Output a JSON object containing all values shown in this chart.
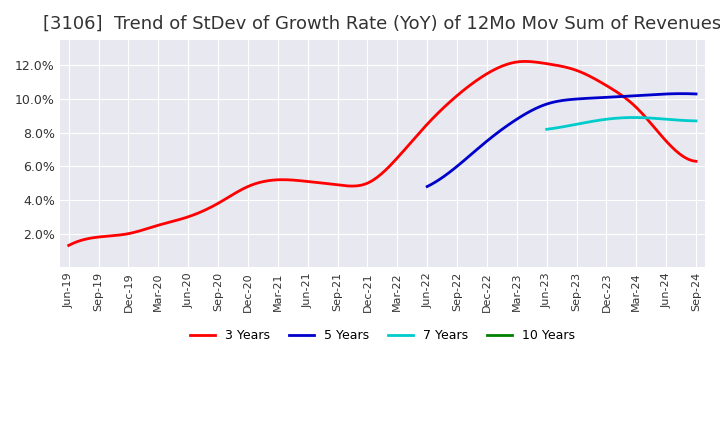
{
  "title": "[3106]  Trend of StDev of Growth Rate (YoY) of 12Mo Mov Sum of Revenues",
  "title_fontsize": 13,
  "ylabel": "",
  "ylim": [
    0.0,
    0.135
  ],
  "yticks": [
    0.02,
    0.04,
    0.06,
    0.08,
    0.1,
    0.12
  ],
  "ytick_labels": [
    "2.0%",
    "4.0%",
    "6.0%",
    "8.0%",
    "10.0%",
    "12.0%"
  ],
  "background_color": "#ffffff",
  "plot_bg_color": "#e8e8f0",
  "grid_color": "#ffffff",
  "series": {
    "3 Years": {
      "color": "#ff0000",
      "dates": [
        "Jun-19",
        "Sep-19",
        "Dec-19",
        "Mar-20",
        "Jun-20",
        "Sep-20",
        "Dec-20",
        "Mar-21",
        "Jun-21",
        "Sep-21",
        "Dec-21",
        "Mar-22",
        "Jun-22",
        "Sep-22",
        "Dec-22",
        "Mar-23",
        "Jun-23",
        "Sep-23",
        "Dec-23",
        "Mar-24",
        "Jun-24",
        "Sep-24"
      ],
      "values": [
        0.013,
        0.018,
        0.02,
        0.025,
        0.03,
        0.038,
        0.048,
        0.052,
        0.051,
        0.049,
        0.05,
        0.065,
        0.085,
        0.102,
        0.115,
        0.122,
        0.121,
        0.117,
        0.108,
        0.095,
        0.075,
        0.063
      ]
    },
    "5 Years": {
      "color": "#0000cc",
      "dates": [
        "Jun-19",
        "Sep-19",
        "Dec-19",
        "Mar-20",
        "Jun-20",
        "Sep-20",
        "Dec-20",
        "Mar-21",
        "Jun-21",
        "Sep-21",
        "Dec-21",
        "Mar-22",
        "Jun-22",
        "Sep-22",
        "Dec-22",
        "Mar-23",
        "Jun-23",
        "Sep-23",
        "Dec-23",
        "Mar-24",
        "Jun-24",
        "Sep-24"
      ],
      "values": [
        null,
        null,
        null,
        null,
        null,
        null,
        null,
        null,
        null,
        null,
        null,
        null,
        0.048,
        0.06,
        0.075,
        0.088,
        0.097,
        0.1,
        0.101,
        0.102,
        0.103,
        0.103
      ]
    },
    "7 Years": {
      "color": "#00cccc",
      "dates": [
        "Jun-19",
        "Sep-19",
        "Dec-19",
        "Mar-20",
        "Jun-20",
        "Sep-20",
        "Dec-20",
        "Mar-21",
        "Jun-21",
        "Sep-21",
        "Dec-21",
        "Mar-22",
        "Jun-22",
        "Sep-22",
        "Dec-22",
        "Mar-23",
        "Jun-23",
        "Sep-23",
        "Dec-23",
        "Mar-24",
        "Jun-24",
        "Sep-24"
      ],
      "values": [
        null,
        null,
        null,
        null,
        null,
        null,
        null,
        null,
        null,
        null,
        null,
        null,
        null,
        null,
        null,
        null,
        0.082,
        0.085,
        0.088,
        0.089,
        0.088,
        0.087
      ]
    },
    "10 Years": {
      "color": "#008000",
      "dates": [
        "Jun-19",
        "Sep-19",
        "Dec-19",
        "Mar-20",
        "Jun-20",
        "Sep-20",
        "Dec-20",
        "Mar-21",
        "Jun-21",
        "Sep-21",
        "Dec-21",
        "Mar-22",
        "Jun-22",
        "Sep-22",
        "Dec-22",
        "Mar-23",
        "Jun-23",
        "Sep-23",
        "Dec-23",
        "Mar-24",
        "Jun-24",
        "Sep-24"
      ],
      "values": [
        null,
        null,
        null,
        null,
        null,
        null,
        null,
        null,
        null,
        null,
        null,
        null,
        null,
        null,
        null,
        null,
        null,
        null,
        null,
        null,
        null,
        null
      ]
    }
  },
  "xtick_labels": [
    "Jun-19",
    "Sep-19",
    "Dec-19",
    "Mar-20",
    "Jun-20",
    "Sep-20",
    "Dec-20",
    "Mar-21",
    "Jun-21",
    "Sep-21",
    "Dec-21",
    "Mar-22",
    "Jun-22",
    "Sep-22",
    "Dec-22",
    "Mar-23",
    "Jun-23",
    "Sep-23",
    "Dec-23",
    "Mar-24",
    "Jun-24",
    "Sep-24"
  ],
  "legend_entries": [
    "3 Years",
    "5 Years",
    "7 Years",
    "10 Years"
  ],
  "legend_colors": [
    "#ff0000",
    "#0000cc",
    "#00cccc",
    "#008000"
  ]
}
